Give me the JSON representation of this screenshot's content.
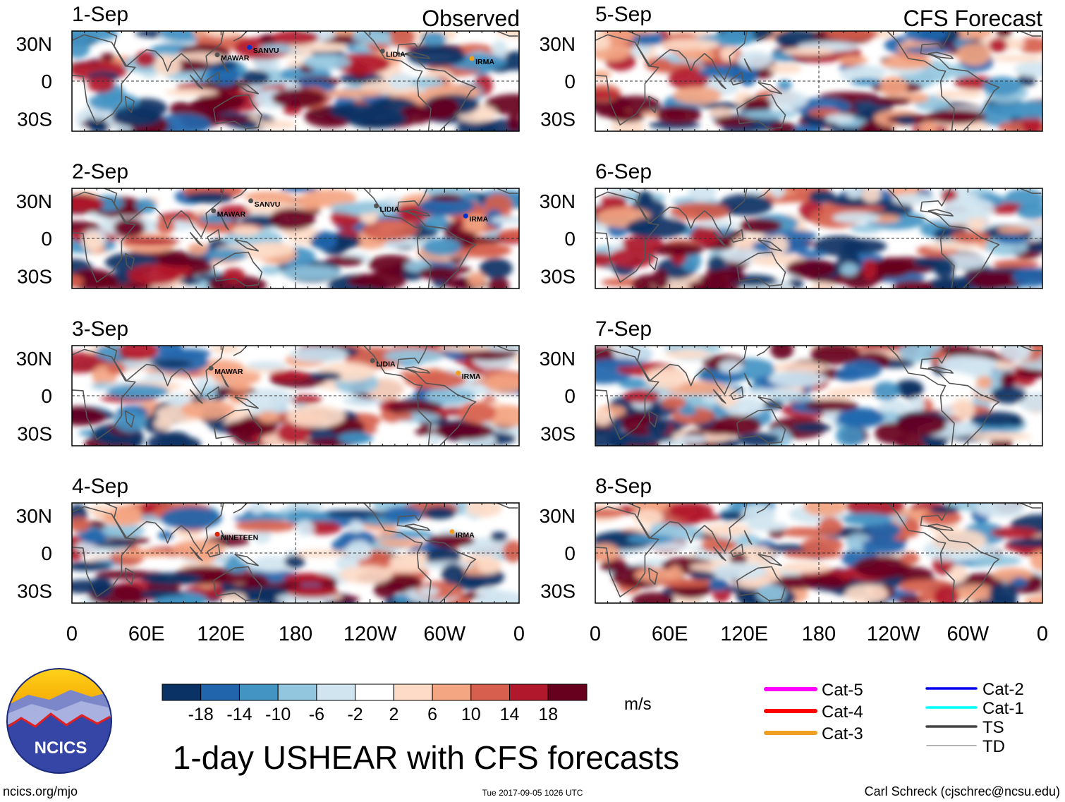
{
  "title": "1-day USHEAR with CFS forecasts",
  "column_labels": {
    "left": "Observed",
    "right": "CFS Forecast"
  },
  "lat_ticks": [
    "30N",
    "0",
    "30S"
  ],
  "lon_ticks": [
    "0",
    "60E",
    "120E",
    "180",
    "120W",
    "60W",
    "0"
  ],
  "panels": [
    {
      "date": "1-Sep",
      "kind": "observed",
      "storms": [
        {
          "name": "SANVU",
          "lon": 143,
          "lat": 27,
          "color": "#0033cc"
        },
        {
          "name": "MAWAR",
          "lon": 117,
          "lat": 21,
          "color": "#555555"
        },
        {
          "name": "LIDIA",
          "lon": 250,
          "lat": 24,
          "color": "#555555"
        },
        {
          "name": "IRMA",
          "lon": 322,
          "lat": 18,
          "color": "#f0a020"
        }
      ]
    },
    {
      "date": "2-Sep",
      "kind": "observed",
      "storms": [
        {
          "name": "SANVU",
          "lon": 144,
          "lat": 30,
          "color": "#555555"
        },
        {
          "name": "MAWAR",
          "lon": 114,
          "lat": 22,
          "color": "#555555"
        },
        {
          "name": "LIDIA",
          "lon": 245,
          "lat": 26,
          "color": "#555555"
        },
        {
          "name": "IRMA",
          "lon": 317,
          "lat": 18,
          "color": "#0033cc"
        }
      ]
    },
    {
      "date": "3-Sep",
      "kind": "observed",
      "storms": [
        {
          "name": "MAWAR",
          "lon": 112,
          "lat": 22,
          "color": "#555555"
        },
        {
          "name": "LIDIA",
          "lon": 242,
          "lat": 28,
          "color": "#555555"
        },
        {
          "name": "IRMA",
          "lon": 311,
          "lat": 18,
          "color": "#f0a020"
        }
      ]
    },
    {
      "date": "4-Sep",
      "kind": "observed",
      "storms": [
        {
          "name": "NINETEEN",
          "lon": 117,
          "lat": 15,
          "color": "#dd2200"
        },
        {
          "name": "IRMA",
          "lon": 306,
          "lat": 17,
          "color": "#f0a020"
        }
      ]
    },
    {
      "date": "5-Sep",
      "kind": "forecast",
      "storms": []
    },
    {
      "date": "6-Sep",
      "kind": "forecast",
      "storms": []
    },
    {
      "date": "7-Sep",
      "kind": "forecast",
      "storms": []
    },
    {
      "date": "8-Sep",
      "kind": "forecast",
      "storms": []
    }
  ],
  "colorbar": {
    "unit": "m/s",
    "tick_labels": [
      "-18",
      "-14",
      "-10",
      "-6",
      "-2",
      "2",
      "6",
      "10",
      "14",
      "18"
    ],
    "colors": [
      "#0a3264",
      "#2166ac",
      "#4393c3",
      "#92c5de",
      "#d1e5f0",
      "#ffffff",
      "#fddbc7",
      "#f4a582",
      "#d6604d",
      "#b2182b",
      "#67001f"
    ]
  },
  "legend": [
    {
      "label": "Cat-5",
      "color": "#ff00ff",
      "weight": "thick"
    },
    {
      "label": "Cat-4",
      "color": "#ff0000",
      "weight": "thick"
    },
    {
      "label": "Cat-3",
      "color": "#f0a020",
      "weight": "thick"
    },
    {
      "label": "Cat-2",
      "color": "#0000ee",
      "weight": "medium"
    },
    {
      "label": "Cat-1",
      "color": "#00ffff",
      "weight": "medium"
    },
    {
      "label": "TS",
      "color": "#444444",
      "weight": "medium"
    },
    {
      "label": "TD",
      "color": "#999999",
      "weight": "thin"
    }
  ],
  "logo_text": "NCICS",
  "footer": {
    "url": "ncics.org/mjo",
    "timestamp": "Tue 2017-09-05 1026 UTC",
    "credit": "Carl Schreck (cjschrec@ncsu.edu)"
  }
}
